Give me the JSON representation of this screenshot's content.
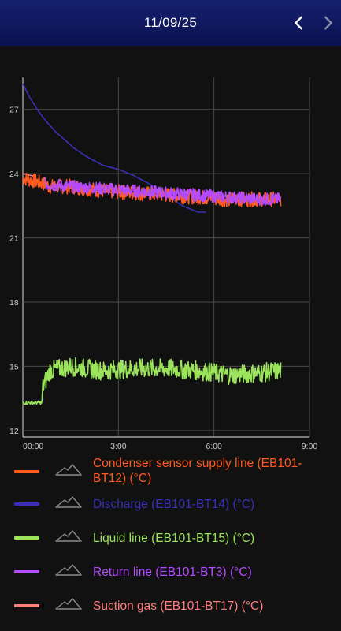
{
  "header": {
    "date": "11/09/25",
    "prev_icon": "chevron-left-icon",
    "next_icon": "chevron-right-icon",
    "background_color": "#101a62"
  },
  "chart_data": {
    "type": "line",
    "x_ticks": [
      "00:00",
      "3:00",
      "6:00",
      "9:00"
    ],
    "y_ticks": [
      12,
      15,
      18,
      21,
      24,
      27
    ],
    "xlim_hours": [
      0,
      9
    ],
    "ylim": [
      11.7,
      28.5
    ],
    "grid": true,
    "legend_position": "bottom",
    "series": [
      {
        "name": "Condenser sensor supply line (EB101-BT12) (°C)",
        "color": "#ff5a1f",
        "style": "noisy-band",
        "x": [
          0.0,
          0.75,
          0.8,
          1.5,
          2.5,
          3.5,
          4.5,
          5.5,
          6.3,
          7.0,
          7.5,
          8.1
        ],
        "y": [
          23.8,
          23.5,
          23.4,
          23.4,
          23.2,
          23.1,
          23.0,
          22.9,
          22.8,
          22.8,
          22.8,
          22.8
        ],
        "spread": 0.35
      },
      {
        "name": "Discharge (EB101-BT14) (°C)",
        "color": "#3a2fb5",
        "style": "line",
        "x": [
          0.0,
          0.2,
          0.45,
          0.7,
          1.0,
          1.3,
          1.6,
          2.0,
          2.5,
          3.0,
          3.5,
          4.0,
          4.5,
          5.0,
          5.5,
          5.75
        ],
        "y": [
          28.2,
          27.6,
          27.0,
          26.5,
          26.0,
          25.6,
          25.2,
          24.8,
          24.4,
          24.2,
          23.9,
          23.5,
          23.0,
          22.5,
          22.2,
          22.2
        ]
      },
      {
        "name": "Liquid line (EB101-BT15) (°C)",
        "color": "#9be45c",
        "style": "noisy-band",
        "x": [
          0.0,
          0.6,
          0.62,
          0.85,
          1.5,
          2.5,
          3.5,
          4.5,
          5.5,
          6.5,
          7.5,
          8.1
        ],
        "y": [
          13.3,
          13.3,
          14.0,
          14.8,
          15.0,
          14.8,
          14.9,
          14.9,
          14.8,
          14.6,
          14.7,
          14.8
        ],
        "spread": 0.45
      },
      {
        "name": "Return line (EB101-BT3) (°C)",
        "color": "#b44bff",
        "style": "noisy-band",
        "x": [
          0.7,
          1.5,
          2.5,
          3.5,
          4.5,
          5.5,
          6.5,
          7.5,
          8.1
        ],
        "y": [
          23.5,
          23.4,
          23.3,
          23.2,
          23.1,
          23.0,
          22.9,
          22.8,
          22.8
        ],
        "spread": 0.3
      },
      {
        "name": "Suction gas (EB101-BT17) (°C)",
        "color": "#ff7f7f",
        "style": "line",
        "x": [
          0.0,
          0.3,
          0.5,
          0.7,
          1.0,
          1.5,
          2.0,
          3.0,
          4.0,
          5.0
        ],
        "y": [
          24.0,
          23.9,
          23.6,
          23.4,
          23.4,
          23.3,
          23.2,
          23.1,
          23.0,
          22.9
        ]
      }
    ]
  },
  "legend": {
    "mountain_icon": "mountain-icon",
    "items": [
      {
        "label": "Condenser sensor supply line (EB101-BT12) (°C)",
        "color": "#ff5a1f"
      },
      {
        "label": "Discharge (EB101-BT14) (°C)",
        "color": "#3a2fb5"
      },
      {
        "label": "Liquid line (EB101-BT15) (°C)",
        "color": "#9be45c"
      },
      {
        "label": "Return line (EB101-BT3) (°C)",
        "color": "#b44bff"
      },
      {
        "label": "Suction gas (EB101-BT17) (°C)",
        "color": "#ff7f7f"
      }
    ]
  }
}
